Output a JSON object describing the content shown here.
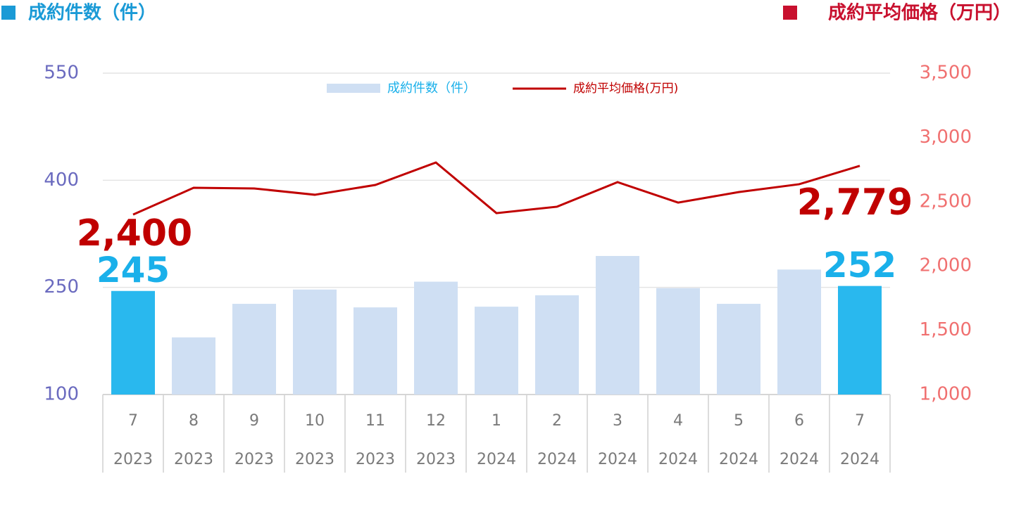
{
  "chart_data": {
    "type": "bar-line",
    "left_title": "成約件数（件）",
    "right_title": "成約平均価格（万円）",
    "categories": [
      "7",
      "8",
      "9",
      "10",
      "11",
      "12",
      "1",
      "2",
      "3",
      "4",
      "5",
      "6",
      "7"
    ],
    "category_years": [
      "2023",
      "2023",
      "2023",
      "2023",
      "2023",
      "2023",
      "2024",
      "2024",
      "2024",
      "2024",
      "2024",
      "2024",
      "2024"
    ],
    "series": [
      {
        "name": "成約件数（件）",
        "type": "bar",
        "axis": "y",
        "colors": [
          "#29b8ee",
          "#cfdff3",
          "#cfdff3",
          "#cfdff3",
          "#cfdff3",
          "#cfdff3",
          "#cfdff3",
          "#cfdff3",
          "#cfdff3",
          "#cfdff3",
          "#cfdff3",
          "#cfdff3",
          "#29b8ee"
        ],
        "values": [
          245,
          180,
          227,
          247,
          222,
          258,
          223,
          239,
          294,
          249,
          227,
          275,
          252
        ],
        "value_labels": [
          "245",
          null,
          null,
          null,
          null,
          null,
          null,
          null,
          null,
          null,
          null,
          null,
          "252"
        ]
      },
      {
        "name": "成約平均価格(万円)",
        "type": "line",
        "axis": "y2",
        "color": "#c00000",
        "values": [
          2400,
          2608,
          2603,
          2554,
          2630,
          2805,
          2411,
          2461,
          2652,
          2493,
          2575,
          2636,
          2779
        ],
        "value_labels": [
          "2,400",
          null,
          null,
          null,
          null,
          null,
          null,
          null,
          null,
          null,
          null,
          null,
          "2,779"
        ]
      }
    ],
    "ylim": [
      100,
      550
    ],
    "yticks": [
      100,
      250,
      400,
      550
    ],
    "y2lim": [
      1000,
      3500
    ],
    "y2ticks": [
      {
        "value": 1000,
        "label": "1,000"
      },
      {
        "value": 1500,
        "label": "1,500"
      },
      {
        "value": 2000,
        "label": "2,000"
      },
      {
        "value": 2500,
        "label": "2,500"
      },
      {
        "value": 3000,
        "label": "3,000"
      },
      {
        "value": 3500,
        "label": "3,500"
      }
    ],
    "grid": true
  }
}
